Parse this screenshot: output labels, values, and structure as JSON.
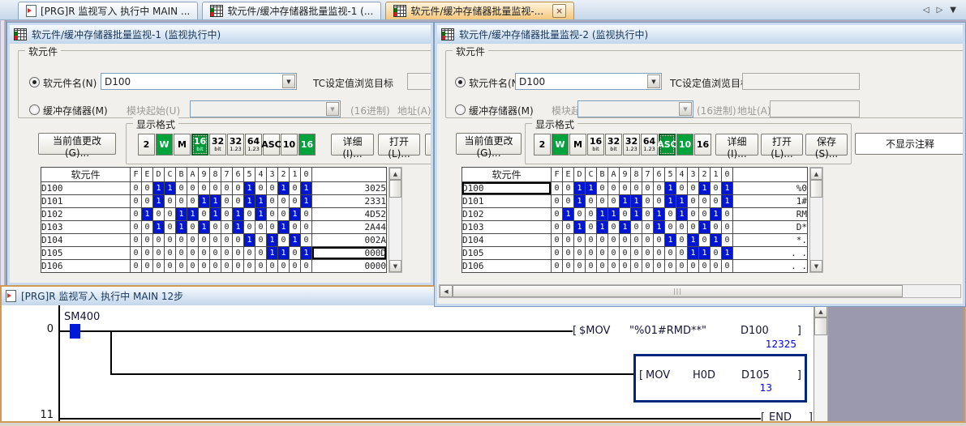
{
  "tab_bar": {
    "tabs": [
      {
        "label": "[PRG]R 监视写入 执行中 MAIN ...",
        "active": false
      },
      {
        "label": "软元件/缓冲存储器批量监视-1 (...",
        "active": false
      },
      {
        "label": "软元件/缓冲存储器批量监视-...",
        "active": true,
        "close_label": "×"
      }
    ],
    "nav": {
      "prev": "◁",
      "next": "▷",
      "menu": "▼"
    }
  },
  "monitor_labels": {
    "device_group": "软元件",
    "device_name_radio": "软元件名(N)",
    "tc_target_label": "TC设定值浏览目标",
    "buffer_memory_radio": "缓冲存储器(M)",
    "module_start_label": "模块起始(U)",
    "hex_label": "(16进制)",
    "address_label": "地址(A)",
    "current_value_button": "当前值更改(G)...",
    "display_format_group": "显示格式",
    "format_buttons": [
      {
        "label": "2",
        "sub": ""
      },
      {
        "label": "W",
        "sub": ""
      },
      {
        "label": "M",
        "sub": ""
      },
      {
        "label": "16",
        "sub": "bit"
      },
      {
        "label": "32",
        "sub": "bit"
      },
      {
        "label": "32",
        "sub": "1.23"
      },
      {
        "label": "64",
        "sub": "1.23"
      },
      {
        "label": "ASC",
        "sub": ""
      },
      {
        "label": "10",
        "sub": ""
      },
      {
        "label": "16",
        "sub": ""
      }
    ],
    "detail_button": "详细(I)...",
    "open_button": "打开(L)...",
    "save_button": "保存(S)...",
    "no_comment_button": "不显示注释",
    "device_column_header": "软元件",
    "bit_headers": [
      "F",
      "E",
      "D",
      "C",
      "B",
      "A",
      "9",
      "8",
      "7",
      "6",
      "5",
      "4",
      "3",
      "2",
      "1",
      "0"
    ],
    "combo_arrow": "▼",
    "scroll_up": "▲",
    "scroll_down": "▼",
    "scroll_left": "◀",
    "hscroll_grip": "|||"
  },
  "monitor1": {
    "title": "软元件/缓冲存储器批量监视-1 (监视执行中)",
    "device_value": "D100",
    "format_states": [
      "",
      "green",
      "",
      "green pressed",
      "",
      "",
      "",
      "",
      "",
      "green"
    ],
    "table": {
      "rows": [
        {
          "device": "D100",
          "bits": [
            0,
            0,
            1,
            1,
            0,
            0,
            0,
            0,
            0,
            0,
            1,
            0,
            0,
            1,
            0,
            1
          ],
          "value": "3025",
          "focus": ""
        },
        {
          "device": "D101",
          "bits": [
            0,
            0,
            1,
            0,
            0,
            0,
            1,
            1,
            0,
            0,
            1,
            1,
            0,
            0,
            0,
            1
          ],
          "value": "2331",
          "focus": ""
        },
        {
          "device": "D102",
          "bits": [
            0,
            1,
            0,
            0,
            1,
            1,
            0,
            1,
            0,
            1,
            0,
            1,
            0,
            0,
            1,
            0
          ],
          "value": "4D52",
          "focus": ""
        },
        {
          "device": "D103",
          "bits": [
            0,
            0,
            1,
            0,
            1,
            0,
            1,
            0,
            0,
            1,
            0,
            0,
            0,
            1,
            0,
            0
          ],
          "value": "2A44",
          "focus": ""
        },
        {
          "device": "D104",
          "bits": [
            0,
            0,
            0,
            0,
            0,
            0,
            0,
            0,
            0,
            0,
            1,
            0,
            1,
            0,
            1,
            0
          ],
          "value": "002A",
          "focus": ""
        },
        {
          "device": "D105",
          "bits": [
            0,
            0,
            0,
            0,
            0,
            0,
            0,
            0,
            0,
            0,
            0,
            0,
            1,
            1,
            0,
            1
          ],
          "value": "000D",
          "focus": "value"
        },
        {
          "device": "D106",
          "bits": [
            0,
            0,
            0,
            0,
            0,
            0,
            0,
            0,
            0,
            0,
            0,
            0,
            0,
            0,
            0,
            0
          ],
          "value": "0000",
          "focus": ""
        }
      ]
    }
  },
  "monitor2": {
    "title": "软元件/缓冲存储器批量监视-2 (监视执行中)",
    "device_value": "D100",
    "format_states": [
      "",
      "green",
      "",
      "",
      "",
      "",
      "",
      "green pressed",
      "green",
      ""
    ],
    "table": {
      "rows": [
        {
          "device": "D100",
          "bits": [
            0,
            0,
            1,
            1,
            0,
            0,
            0,
            0,
            0,
            0,
            1,
            0,
            0,
            1,
            0,
            1
          ],
          "value": "%0",
          "focus": "device"
        },
        {
          "device": "D101",
          "bits": [
            0,
            0,
            1,
            0,
            0,
            0,
            1,
            1,
            0,
            0,
            1,
            1,
            0,
            0,
            0,
            1
          ],
          "value": "1#",
          "focus": ""
        },
        {
          "device": "D102",
          "bits": [
            0,
            1,
            0,
            0,
            1,
            1,
            0,
            1,
            0,
            1,
            0,
            1,
            0,
            0,
            1,
            0
          ],
          "value": "RM",
          "focus": ""
        },
        {
          "device": "D103",
          "bits": [
            0,
            0,
            1,
            0,
            1,
            0,
            1,
            0,
            0,
            1,
            0,
            0,
            0,
            1,
            0,
            0
          ],
          "value": "D*",
          "focus": ""
        },
        {
          "device": "D104",
          "bits": [
            0,
            0,
            0,
            0,
            0,
            0,
            0,
            0,
            0,
            0,
            1,
            0,
            1,
            0,
            1,
            0
          ],
          "value": "*.",
          "focus": ""
        },
        {
          "device": "D105",
          "bits": [
            0,
            0,
            0,
            0,
            0,
            0,
            0,
            0,
            0,
            0,
            0,
            0,
            1,
            1,
            0,
            1
          ],
          "value": ". .",
          "focus": ""
        },
        {
          "device": "D106",
          "bits": [
            0,
            0,
            0,
            0,
            0,
            0,
            0,
            0,
            0,
            0,
            0,
            0,
            0,
            0,
            0,
            0
          ],
          "value": ". .",
          "focus": ""
        }
      ]
    }
  },
  "ladder": {
    "title": "[PRG]R 监视写入 执行中 MAIN 12步",
    "rung0": {
      "number": "0",
      "contact": "SM400",
      "instruction": {
        "open": "[",
        "op": "$MOV",
        "arg1": "\"%01#RMD**\"",
        "arg2": "D100",
        "close": "]"
      },
      "monitor_value": "12325"
    },
    "branch_instruction": {
      "open": "[",
      "op": "MOV",
      "arg1": "H0D",
      "arg2": "D105",
      "close": "]",
      "monitor_value": "13"
    },
    "rung11": {
      "number": "11",
      "instruction": {
        "open": "[",
        "op": "END",
        "close": "]"
      }
    }
  }
}
